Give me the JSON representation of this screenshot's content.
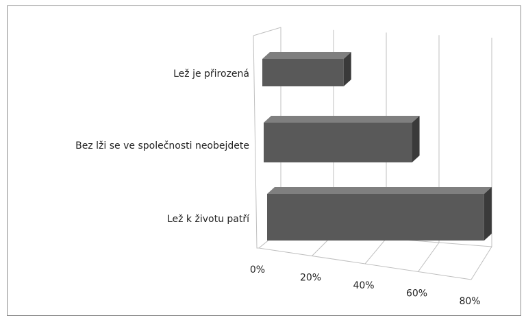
{
  "chart_data": {
    "type": "bar3d_horizontal",
    "categories": [
      "Lež je přirozená",
      "Bez lži se ve společnosti neobejdete",
      "Lež k životu patří"
    ],
    "values": [
      25,
      45,
      65
    ],
    "color": "#595959",
    "xlim": [
      0,
      80
    ],
    "xticks": [
      {
        "value": 0,
        "label": "0%"
      },
      {
        "value": 20,
        "label": "20%"
      },
      {
        "value": 40,
        "label": "40%"
      },
      {
        "value": 60,
        "label": "60%"
      },
      {
        "value": 80,
        "label": "80%"
      }
    ],
    "grid": true
  }
}
